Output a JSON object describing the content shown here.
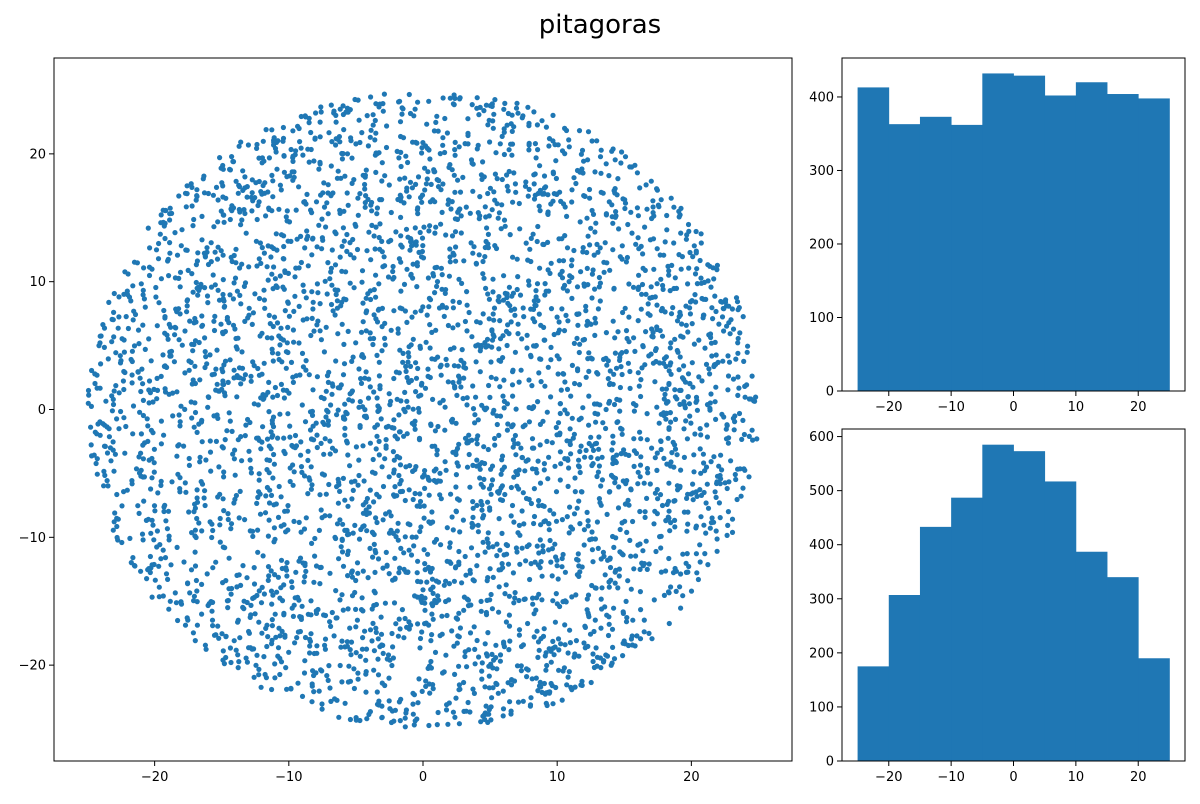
{
  "figure": {
    "title": "pitagoras",
    "color": "#1f77b4"
  },
  "chart_data": [
    {
      "type": "scatter",
      "title": "",
      "xlabel": "",
      "ylabel": "",
      "xlim": [
        -27.5,
        27.5
      ],
      "ylim": [
        -27.5,
        27.5
      ],
      "xticks": [
        -20,
        -10,
        0,
        10,
        20
      ],
      "yticks": [
        -20,
        -10,
        0,
        10,
        20
      ],
      "shape": "disk",
      "radius": 25,
      "center": [
        0,
        0
      ],
      "approx_point_count": 4000,
      "grid": false,
      "color": "#1f77b4"
    },
    {
      "type": "bar",
      "title": "",
      "xlabel": "",
      "ylabel": "",
      "bin_edges": [
        -25,
        -20,
        -15,
        -10,
        -5,
        0,
        5,
        10,
        15,
        20,
        25
      ],
      "values": [
        413,
        363,
        373,
        362,
        432,
        429,
        402,
        420,
        404,
        398
      ],
      "xlim": [
        -27.5,
        27.5
      ],
      "ylim": [
        0,
        453
      ],
      "xticks": [
        -20,
        -10,
        0,
        10,
        20
      ],
      "yticks": [
        0,
        100,
        200,
        300,
        400
      ],
      "grid": false,
      "color": "#1f77b4"
    },
    {
      "type": "bar",
      "title": "",
      "xlabel": "",
      "ylabel": "",
      "bin_edges": [
        -25,
        -20,
        -15,
        -10,
        -5,
        0,
        5,
        10,
        15,
        20,
        25
      ],
      "values": [
        175,
        307,
        433,
        487,
        585,
        573,
        517,
        387,
        340,
        190
      ],
      "xlim": [
        -27.5,
        27.5
      ],
      "ylim": [
        0,
        614
      ],
      "xticks": [
        -20,
        -10,
        0,
        10,
        20
      ],
      "yticks": [
        0,
        100,
        200,
        300,
        400,
        500,
        600
      ],
      "grid": false,
      "color": "#1f77b4"
    }
  ]
}
